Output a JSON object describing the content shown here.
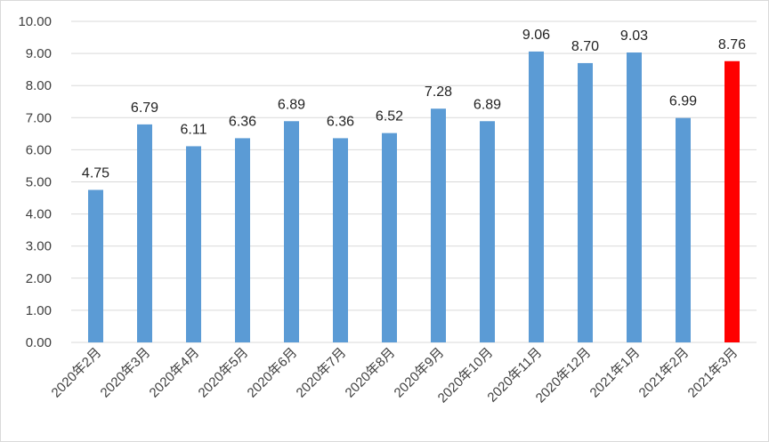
{
  "chart_data": {
    "type": "bar",
    "title": "",
    "xlabel": "",
    "ylabel": "",
    "ylim": [
      0,
      10
    ],
    "yticks": [
      "0.00",
      "1.00",
      "2.00",
      "3.00",
      "4.00",
      "5.00",
      "6.00",
      "7.00",
      "8.00",
      "9.00",
      "10.00"
    ],
    "categories": [
      "2020年2月",
      "2020年3月",
      "2020年4月",
      "2020年5月",
      "2020年6月",
      "2020年7月",
      "2020年8月",
      "2020年9月",
      "2020年10月",
      "2020年11月",
      "2020年12月",
      "2021年1月",
      "2021年2月",
      "2021年3月"
    ],
    "values": [
      4.75,
      6.79,
      6.11,
      6.36,
      6.89,
      6.36,
      6.52,
      7.28,
      6.89,
      9.06,
      8.7,
      9.03,
      6.99,
      8.76
    ],
    "value_labels": [
      "4.75",
      "6.79",
      "6.11",
      "6.36",
      "6.89",
      "6.36",
      "6.52",
      "7.28",
      "6.89",
      "9.06",
      "8.70",
      "9.03",
      "6.99",
      "8.76"
    ],
    "grid": true,
    "colors": {
      "bar": "#5b9bd5",
      "highlight": "#ff0000",
      "grid": "#d9d9d9"
    },
    "highlight_index": 13
  }
}
